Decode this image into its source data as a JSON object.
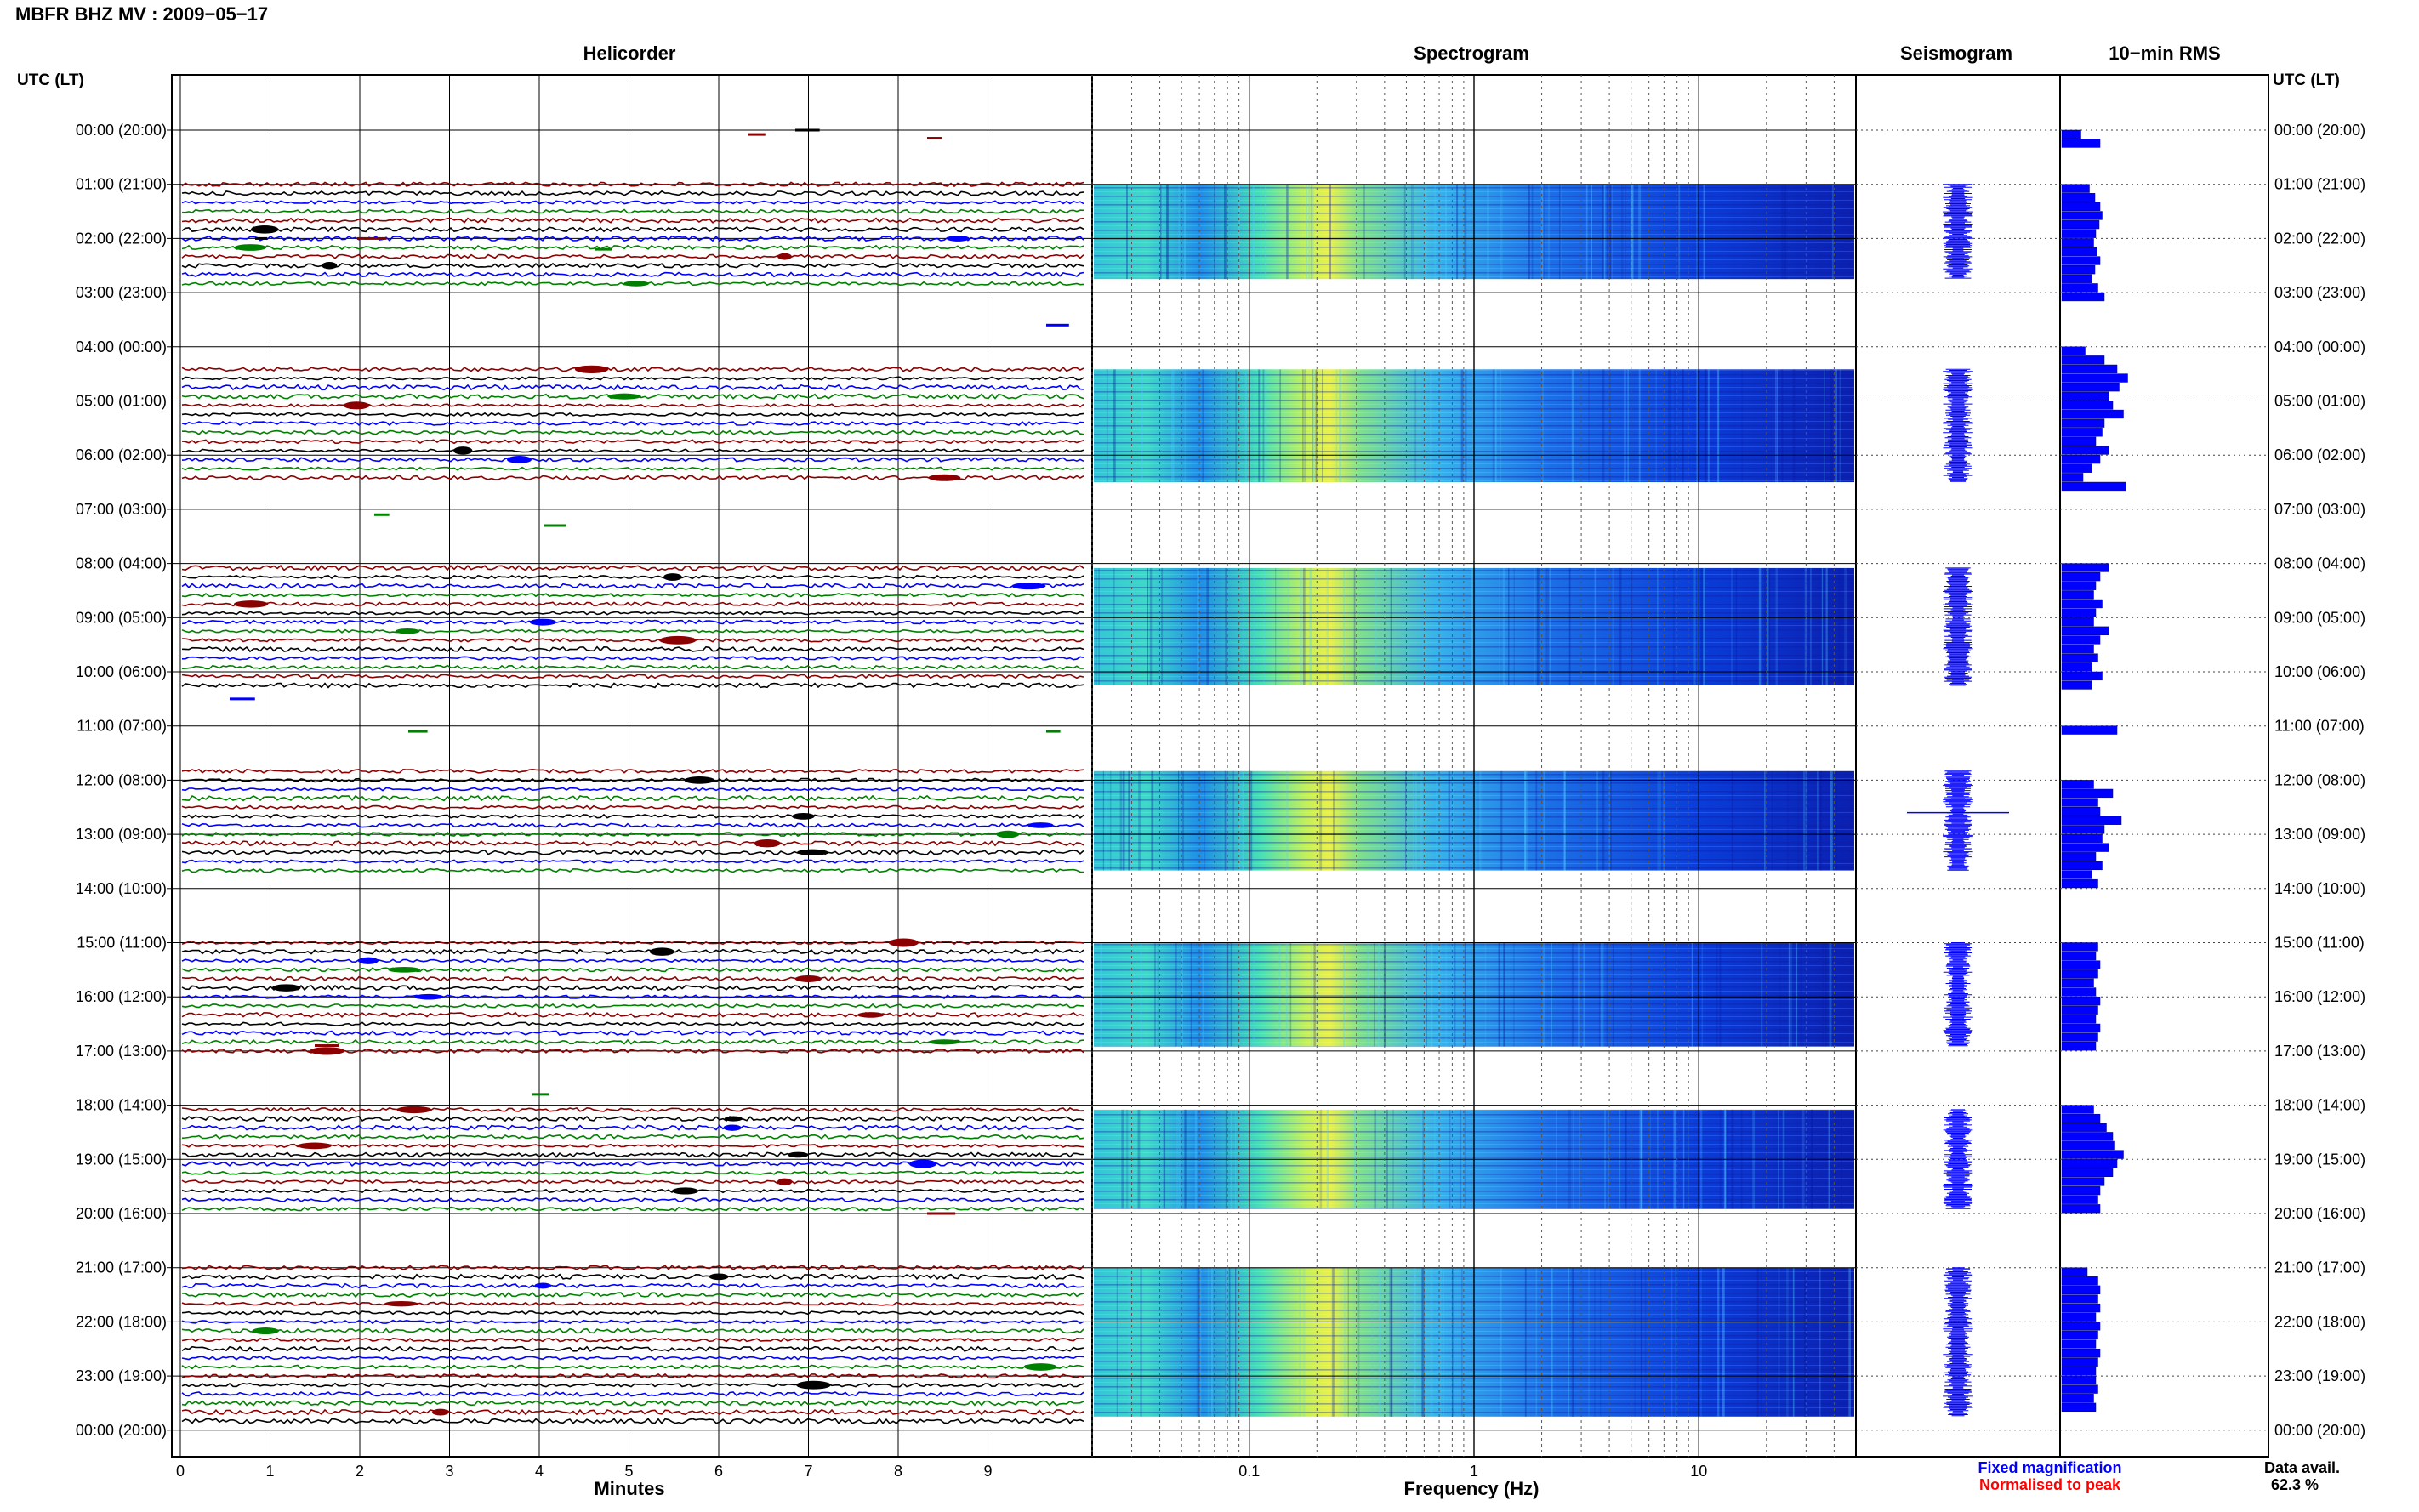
{
  "header": {
    "title": "MBFR BHZ MV : 2009−05−17"
  },
  "panels": {
    "helicorder": "Helicorder",
    "spectrogram": "Spectrogram",
    "seismogram": "Seismogram",
    "rms": "10−min RMS"
  },
  "axes": {
    "time_label_left": "UTC (LT)",
    "time_label_right": "UTC (LT)",
    "minutes_label": "Minutes",
    "frequency_label": "Frequency (Hz)"
  },
  "legend": {
    "fixed": "Fixed magnification",
    "normalised": "Normalised to peak",
    "fixed_color": "#0000ff",
    "normalised_color": "#ff0000"
  },
  "availability": {
    "label": "Data avail.",
    "value": "62.3 %"
  },
  "chart_data": [
    {
      "type": "line",
      "panel": "Helicorder",
      "xlabel": "Minutes",
      "x_ticks": [
        "0",
        "1",
        "2",
        "3",
        "4",
        "5",
        "6",
        "7",
        "8",
        "9"
      ],
      "xlim": [
        0,
        10
      ],
      "trace_colors": [
        "#000000",
        "#0000ff",
        "#008000",
        "#8b0000"
      ],
      "rows_per_hour": 6
    },
    {
      "type": "heatmap",
      "panel": "Spectrogram",
      "xlabel": "Frequency (Hz)",
      "x_scale": "log",
      "x_ticks": [
        "0.1",
        "1",
        "10"
      ],
      "xlim": [
        0.02,
        50
      ],
      "colormap": "jet"
    },
    {
      "type": "line",
      "panel": "Seismogram"
    },
    {
      "type": "bar",
      "panel": "10−min RMS",
      "orientation": "horizontal",
      "bar_color": "#0000ff"
    }
  ],
  "time_ticks": [
    "00:00 (20:00)",
    "01:00 (21:00)",
    "02:00 (22:00)",
    "03:00 (23:00)",
    "04:00 (00:00)",
    "05:00 (01:00)",
    "06:00 (02:00)",
    "07:00 (03:00)",
    "08:00 (04:00)",
    "09:00 (05:00)",
    "10:00 (06:00)",
    "11:00 (07:00)",
    "12:00 (08:00)",
    "13:00 (09:00)",
    "14:00 (10:00)",
    "15:00 (11:00)",
    "16:00 (12:00)",
    "17:00 (13:00)",
    "18:00 (14:00)",
    "19:00 (15:00)",
    "20:00 (16:00)",
    "21:00 (17:00)",
    "22:00 (18:00)",
    "23:00 (19:00)",
    "00:00 (20:00)"
  ],
  "data_blocks": [
    {
      "from": "01:00 (21:00)",
      "to": "02:45 (22:45)"
    },
    {
      "from": "04:25 (00:25)",
      "to": "06:30 (02:30)"
    },
    {
      "from": "08:05 (04:05)",
      "to": "10:15 (06:15)"
    },
    {
      "from": "11:50 (07:50)",
      "to": "13:40 (09:40)"
    },
    {
      "from": "15:00 (11:00)",
      "to": "16:55 (12:55)"
    },
    {
      "from": "18:05 (14:05)",
      "to": "19:55 (15:55)"
    },
    {
      "from": "21:00 (17:00)",
      "to": "23:45 (19:45)"
    }
  ],
  "rms_values": {
    "00:00 (20:00)": [
      0.45,
      0.9
    ],
    "01:00 (21:00)": [
      0.65,
      0.78,
      0.9,
      0.95,
      0.88,
      0.8
    ],
    "02:00 (22:00)": [
      0.75,
      0.82,
      0.9,
      0.78,
      0.7,
      0.85
    ],
    "03:00 (23:00)": [
      1.0
    ],
    "04:00 (00:00)": [
      0.55,
      1.0,
      1.3,
      1.55,
      1.35,
      1.1
    ],
    "05:00 (01:00)": [
      1.2,
      1.45,
      1.0,
      0.95,
      0.8,
      1.1
    ],
    "06:00 (02:00)": [
      0.9,
      0.7,
      0.5,
      1.5
    ],
    "08:00 (04:00)": [
      1.1,
      0.9,
      0.8,
      0.75,
      0.95,
      0.8
    ],
    "09:00 (05:00)": [
      0.75,
      1.1,
      0.9,
      0.75,
      0.85,
      0.7
    ],
    "10:00 (06:00)": [
      0.95,
      0.7
    ],
    "11:00 (07:00)": [
      1.3
    ],
    "12:00 (08:00)": [
      0.75,
      1.2,
      0.85,
      0.9,
      1.4,
      1.0
    ],
    "13:00 (09:00)": [
      0.95,
      1.1,
      0.8,
      0.95,
      0.7,
      0.85
    ],
    "15:00 (11:00)": [
      0.85,
      0.8,
      0.9,
      0.85,
      0.75,
      0.8
    ],
    "16:00 (12:00)": [
      0.9,
      0.85,
      0.8,
      0.9,
      0.85,
      0.8
    ],
    "18:00 (14:00)": [
      0.75,
      0.9,
      1.05,
      1.2,
      1.25,
      1.45
    ],
    "19:00 (15:00)": [
      1.3,
      1.2,
      1.0,
      0.9,
      0.85,
      0.9
    ],
    "21:00 (17:00)": [
      0.6,
      0.85,
      0.9,
      0.85,
      0.9,
      0.8
    ],
    "22:00 (18:00)": [
      0.9,
      0.85,
      0.8,
      0.9,
      0.85,
      0.8
    ],
    "23:00 (19:00)": [
      0.8,
      0.85,
      0.75,
      0.8
    ]
  }
}
